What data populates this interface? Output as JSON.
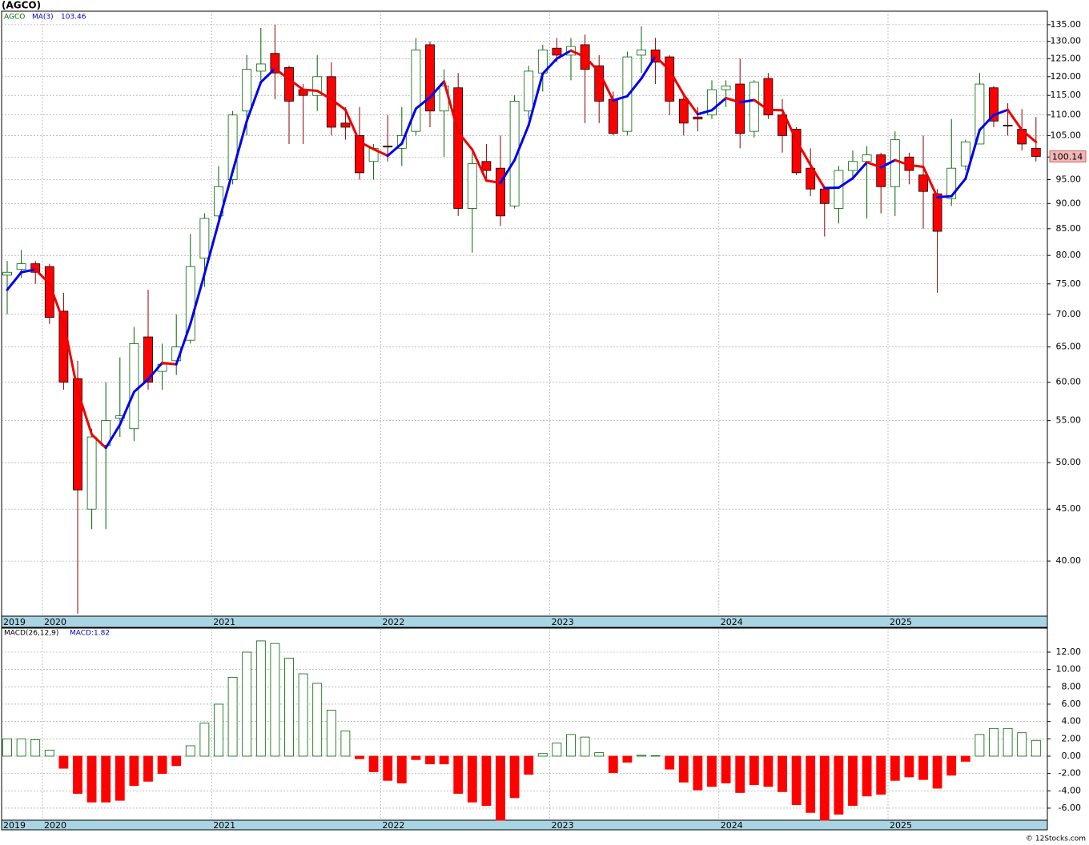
{
  "title": "(AGCO)",
  "credit": "© 12Stocks.com",
  "chart_data": [
    {
      "type": "candlestick",
      "symbol": "AGCO",
      "log_scale": true,
      "grid": true,
      "categories": [
        "2019",
        null,
        null,
        "2020",
        null,
        null,
        null,
        null,
        null,
        null,
        null,
        null,
        null,
        null,
        null,
        "2021",
        null,
        null,
        null,
        null,
        null,
        null,
        null,
        null,
        null,
        null,
        null,
        "2022",
        null,
        null,
        null,
        null,
        null,
        null,
        null,
        null,
        null,
        null,
        null,
        "2023",
        null,
        null,
        null,
        null,
        null,
        null,
        null,
        null,
        null,
        null,
        null,
        "2024",
        null,
        null,
        null,
        null,
        null,
        null,
        null,
        null,
        null,
        null,
        null,
        "2025",
        null,
        null,
        null,
        null,
        null,
        null,
        null,
        null,
        null,
        null
      ],
      "open": [
        76.5,
        77.5,
        78.5,
        78,
        70.5,
        60.5,
        45,
        52,
        55.3,
        54,
        66.5,
        61.5,
        63,
        66,
        79.5,
        87.5,
        95,
        111,
        121.5,
        126.5,
        122.5,
        116.5,
        115,
        120,
        108,
        105,
        99,
        102.5,
        102,
        106,
        129,
        111,
        117,
        89,
        99,
        97.5,
        89.5,
        111,
        121,
        128,
        126,
        129,
        123,
        114,
        106,
        126,
        127.5,
        125.5,
        114,
        109.5,
        110,
        116.5,
        118,
        106,
        119.5,
        110,
        106.5,
        97.5,
        93,
        89,
        97,
        99,
        100.5,
        93.5,
        100,
        96,
        92,
        91,
        98,
        103,
        117,
        107.5,
        106.5,
        102
      ],
      "high": [
        79,
        81,
        79,
        78.5,
        73.5,
        63,
        54,
        60,
        63.5,
        68,
        74,
        65.5,
        70,
        84,
        88,
        98,
        111,
        126,
        134,
        135,
        123,
        118,
        126,
        124,
        112,
        112,
        103,
        110,
        112,
        131,
        130,
        122,
        121,
        101,
        103,
        105,
        115,
        123,
        129,
        131,
        131,
        132,
        126,
        116,
        127,
        134.5,
        131,
        126,
        115,
        112,
        119,
        119,
        125,
        119,
        121,
        114,
        107,
        102,
        93.5,
        98,
        101.5,
        102.5,
        101,
        106,
        101,
        105,
        93,
        109,
        104,
        121,
        117.5,
        113,
        111.5,
        109.5
      ],
      "low": [
        70,
        76,
        75,
        68.5,
        59,
        35.5,
        43,
        43,
        53,
        52.5,
        59,
        59,
        61,
        65.5,
        74.5,
        86,
        94,
        105,
        119,
        114,
        103,
        103,
        111,
        105,
        104,
        95,
        95,
        99,
        98,
        105,
        107,
        100,
        87.5,
        80.5,
        95,
        85.5,
        89,
        109,
        116,
        124,
        119,
        108,
        108,
        105,
        105,
        121,
        118,
        110,
        105,
        106,
        109,
        112,
        102,
        104.5,
        109,
        101,
        96,
        91.5,
        83.5,
        86,
        95,
        87,
        88,
        87.5,
        94,
        85,
        73.5,
        89.5,
        97,
        103,
        107,
        105,
        101.5,
        99
      ],
      "close": [
        77,
        78.5,
        77,
        69.5,
        60,
        47,
        53,
        55,
        55.6,
        65.5,
        60,
        62.5,
        65,
        78,
        87,
        93.5,
        110,
        122,
        123.5,
        121,
        113.5,
        115,
        120,
        107,
        107,
        96.5,
        102,
        102.3,
        105,
        127.5,
        111,
        117.5,
        89,
        98.5,
        97,
        87.5,
        113.5,
        121.5,
        127.5,
        126,
        128.5,
        122,
        113.5,
        105.5,
        125.5,
        127.5,
        124,
        113.5,
        108,
        109,
        116.5,
        117.5,
        105.5,
        118.5,
        110,
        105,
        96.5,
        93,
        90,
        97,
        99,
        100.5,
        93.5,
        104,
        97,
        92.5,
        84.5,
        97.5,
        103.5,
        118,
        108.5,
        107.3,
        103,
        100.14
      ],
      "last_label": "100.14",
      "up_color": "#ffffff",
      "down_color": "#ff0000",
      "ma": {
        "name": "MA(3)",
        "value_label": "103.46",
        "up_color": "#0000ee",
        "down_color": "#ee0000",
        "values": [
          74,
          77,
          77.5,
          75,
          68.8,
          58.8,
          53.3,
          51.7,
          54.5,
          58.7,
          60.4,
          62.7,
          62.5,
          68.5,
          76.7,
          86.2,
          96.8,
          108.5,
          118.5,
          122.2,
          119.3,
          116.5,
          116.2,
          114,
          111.3,
          103.5,
          101.8,
          100.3,
          103.1,
          111.6,
          114.5,
          118.7,
          105.8,
          101.7,
          94.8,
          94.3,
          99.3,
          107.5,
          120.8,
          125,
          127.3,
          125.5,
          121.3,
          113.7,
          114.8,
          119.5,
          125.7,
          121.7,
          115.2,
          110.2,
          111.2,
          114.3,
          113.2,
          113.8,
          111.3,
          111.2,
          103.8,
          98.2,
          93.2,
          93.3,
          95.3,
          98.8,
          97.7,
          99.3,
          98.2,
          97.8,
          91.3,
          91.5,
          95.2,
          106.3,
          110,
          111.3,
          106.3,
          103.46
        ]
      },
      "ylim": [
        35.3,
        139.2
      ],
      "yticks": [
        {
          "value": 40,
          "label": "40.00"
        },
        {
          "value": 45,
          "label": "45.00"
        },
        {
          "value": 50,
          "label": "50.00"
        },
        {
          "value": 55,
          "label": "55.00"
        },
        {
          "value": 60,
          "label": "60.00"
        },
        {
          "value": 65,
          "label": "65.00"
        },
        {
          "value": 70,
          "label": "70.00"
        },
        {
          "value": 75,
          "label": "75.00"
        },
        {
          "value": 80,
          "label": "80.00"
        },
        {
          "value": 85,
          "label": "85.00"
        },
        {
          "value": 90,
          "label": "90.00"
        },
        {
          "value": 95,
          "label": "95.00"
        },
        {
          "value": 100,
          "label": "100.00"
        },
        {
          "value": 105,
          "label": "105.00"
        },
        {
          "value": 110,
          "label": "110.00"
        },
        {
          "value": 115,
          "label": "115.00"
        },
        {
          "value": 120,
          "label": "120.00"
        },
        {
          "value": 125,
          "label": "125.00"
        },
        {
          "value": 130,
          "label": "130.00"
        },
        {
          "value": 135,
          "label": "135.00"
        }
      ]
    },
    {
      "type": "bar",
      "name": "MACD(26,12,9)",
      "value_label": "MACD:1.82",
      "grid": true,
      "categories": [
        "2019",
        null,
        null,
        "2020",
        null,
        null,
        null,
        null,
        null,
        null,
        null,
        null,
        null,
        null,
        null,
        "2021",
        null,
        null,
        null,
        null,
        null,
        null,
        null,
        null,
        null,
        null,
        null,
        "2022",
        null,
        null,
        null,
        null,
        null,
        null,
        null,
        null,
        null,
        null,
        null,
        "2023",
        null,
        null,
        null,
        null,
        null,
        null,
        null,
        null,
        null,
        null,
        null,
        "2024",
        null,
        null,
        null,
        null,
        null,
        null,
        null,
        null,
        null,
        null,
        null,
        "2025",
        null,
        null,
        null,
        null,
        null,
        null,
        null,
        null,
        null,
        null
      ],
      "values": [
        2.0,
        2.0,
        1.9,
        0.7,
        -1.4,
        -4.3,
        -5.3,
        -5.3,
        -5.1,
        -3.4,
        -2.9,
        -2.0,
        -1.1,
        1.2,
        3.8,
        6.0,
        9.1,
        12.0,
        13.3,
        13.0,
        11.3,
        9.5,
        8.4,
        5.3,
        2.9,
        -0.3,
        -1.8,
        -2.8,
        -3.1,
        -0.4,
        -0.9,
        -0.9,
        -4.3,
        -5.3,
        -5.7,
        -7.4,
        -4.8,
        -2.1,
        0.3,
        1.5,
        2.5,
        2.2,
        0.4,
        -1.9,
        -0.7,
        0.1,
        0.05,
        -1.5,
        -3.0,
        -3.9,
        -3.5,
        -3.1,
        -4.2,
        -3.3,
        -3.5,
        -4.1,
        -5.6,
        -6.5,
        -7.4,
        -6.7,
        -5.7,
        -4.6,
        -4.4,
        -2.8,
        -2.4,
        -2.7,
        -3.7,
        -2.2,
        -0.6,
        2.5,
        3.2,
        3.2,
        2.7,
        1.82
      ],
      "up_color": "#ffffff",
      "up_stroke": "#006400",
      "down_color": "#ff0000",
      "ylim": [
        -7.39,
        14.77
      ],
      "yticks": [
        {
          "value": -6,
          "label": "-6.00"
        },
        {
          "value": -4,
          "label": "-4.00"
        },
        {
          "value": -2,
          "label": "-2.00"
        },
        {
          "value": 0,
          "label": "0.00"
        },
        {
          "value": 2,
          "label": "2.00"
        },
        {
          "value": 4,
          "label": "4.00"
        },
        {
          "value": 6,
          "label": "6.00"
        },
        {
          "value": 8,
          "label": "8.00"
        },
        {
          "value": 10,
          "label": "10.00"
        },
        {
          "value": 12,
          "label": "12.00"
        }
      ]
    }
  ]
}
